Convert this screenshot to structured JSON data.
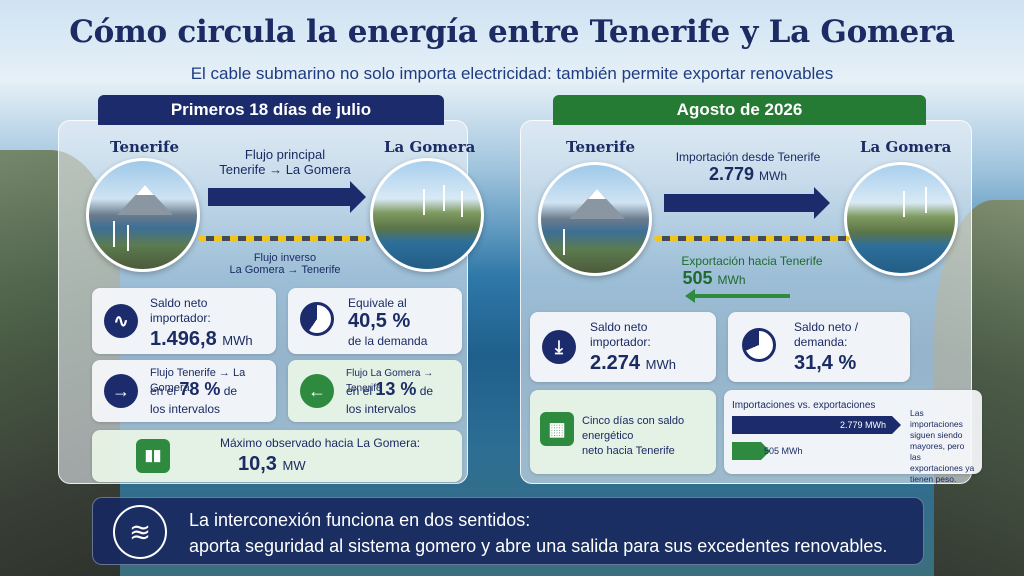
{
  "title": "Cómo circula la energía entre Tenerife y La Gomera",
  "subtitle": "El cable submarino no solo importa electricidad: también permite exportar renovables",
  "left": {
    "header": "Primeros 18 días de julio",
    "place_a": "Tenerife",
    "place_b": "La Gomera",
    "main_flow_line1": "Flujo principal",
    "main_flow_line2": "Tenerife → La Gomera",
    "inverse_flow_line1": "Flujo inverso",
    "inverse_flow_line2": "La Gomera → Tenerife",
    "net_import": {
      "label1": "Saldo neto",
      "label2": "importador:",
      "value": "1.496,8",
      "unit": "MWh"
    },
    "demand_share": {
      "label": "Equivale al",
      "value": "40,5 %",
      "suffix": "de la demanda",
      "percent": 40.5
    },
    "forward_share": {
      "label": "Flujo Tenerife → La Gomera",
      "prefix": "en el",
      "value": "78 %",
      "suffix": "de",
      "tail": "los intervalos"
    },
    "reverse_share": {
      "label": "Flujo La Gomera → Tenerife",
      "prefix": "en el",
      "value": "13 %",
      "suffix": "de",
      "tail": "los intervalos"
    },
    "max_flow": {
      "label": "Máximo observado hacia La Gomera:",
      "value": "10,3",
      "unit": "MW"
    }
  },
  "right": {
    "header": "Agosto de 2026",
    "place_a": "Tenerife",
    "place_b": "La Gomera",
    "import_label": "Importación desde Tenerife",
    "import_value": "2.779",
    "import_unit": "MWh",
    "export_label": "Exportación hacia Tenerife",
    "export_value": "505",
    "export_unit": "MWh",
    "net_import": {
      "label1": "Saldo neto",
      "label2": "importador:",
      "value": "2.274",
      "unit": "MWh"
    },
    "net_demand": {
      "label1": "Saldo neto /",
      "label2": "demanda:",
      "value": "31,4 %",
      "percent": 31.4
    },
    "five_days": {
      "line1": "Cinco días con saldo energético",
      "line2": "neto hacia Tenerife"
    },
    "comparison": {
      "title": "Importaciones vs. exportaciones",
      "import_bar_label": "2.779 MWh",
      "export_bar_label": "505 MWh",
      "import_value": 2779,
      "export_value": 505,
      "note": "Las importaciones siguen siendo mayores, pero las exportaciones ya tienen peso."
    }
  },
  "footer": {
    "line1": "La interconexión funciona en dos sentidos:",
    "line2": "aporta seguridad al sistema gomero y abre una salida para sus excedentes renovables."
  },
  "colors": {
    "navy": "#1b2b6b",
    "green": "#2d8a3e",
    "title": "#1c2b63"
  },
  "icons": [
    "heartbeat-icon",
    "pie-chart-icon",
    "arrow-right-icon",
    "arrow-left-icon",
    "bar-chart-icon",
    "download-icon",
    "calendar-icon",
    "wave-hand-icon"
  ]
}
